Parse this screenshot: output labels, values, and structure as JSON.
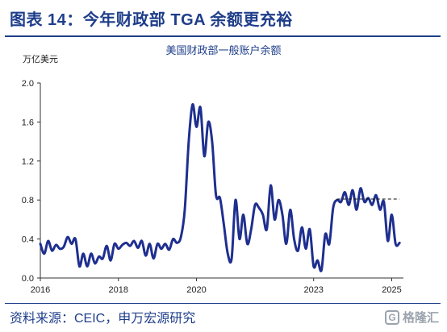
{
  "header": {
    "title": "图表 14：今年财政部 TGA 余额更充裕"
  },
  "footer": {
    "source": "资料来源：CEIC，申万宏源研究"
  },
  "watermark": {
    "text": "格隆汇",
    "glyph": "G"
  },
  "chart_data": {
    "type": "line",
    "title": "美国财政部一般账户余额",
    "ylabel": "万亿美元",
    "ylim": [
      0,
      2.0
    ],
    "yticks": [
      "0.0",
      "0.4",
      "0.8",
      "1.2",
      "1.6",
      "2.0"
    ],
    "xlim": [
      2016.0,
      2025.3
    ],
    "xticks": [
      "2016",
      "2018",
      "2020",
      "2023",
      "2025"
    ],
    "line_color": "#1f2f8f",
    "reference_line": {
      "y": 0.81,
      "x_start": 2023.6,
      "x_end": 2025.2,
      "style": "dashed"
    },
    "series": [
      {
        "x": [
          2016.0,
          2016.1,
          2016.2,
          2016.3,
          2016.4,
          2016.5,
          2016.6,
          2016.7,
          2016.8,
          2016.9,
          2017.0,
          2017.1,
          2017.2,
          2017.3,
          2017.4,
          2017.5,
          2017.6,
          2017.7,
          2017.8,
          2017.9,
          2018.0,
          2018.1,
          2018.2,
          2018.3,
          2018.4,
          2018.5,
          2018.6,
          2018.7,
          2018.8,
          2018.9,
          2019.0,
          2019.1,
          2019.2,
          2019.3,
          2019.4,
          2019.5,
          2019.6,
          2019.7,
          2019.8,
          2019.9,
          2020.0,
          2020.1,
          2020.2,
          2020.3,
          2020.4,
          2020.5,
          2020.6,
          2020.7,
          2020.8,
          2020.9,
          2021.0,
          2021.1,
          2021.2,
          2021.3,
          2021.4,
          2021.5,
          2021.6,
          2021.7,
          2021.8,
          2021.9,
          2022.0,
          2022.1,
          2022.2,
          2022.3,
          2022.4,
          2022.5,
          2022.6,
          2022.7,
          2022.8,
          2022.9,
          2023.0,
          2023.1,
          2023.2,
          2023.3,
          2023.4,
          2023.5,
          2023.6,
          2023.7,
          2023.8,
          2023.9,
          2024.0,
          2024.1,
          2024.2,
          2024.3,
          2024.4,
          2024.5,
          2024.6,
          2024.7,
          2024.8,
          2024.9,
          2025.0,
          2025.1,
          2025.2
        ],
        "y": [
          0.35,
          0.25,
          0.38,
          0.28,
          0.34,
          0.3,
          0.32,
          0.42,
          0.35,
          0.4,
          0.12,
          0.25,
          0.12,
          0.25,
          0.15,
          0.22,
          0.2,
          0.33,
          0.18,
          0.35,
          0.3,
          0.34,
          0.36,
          0.33,
          0.38,
          0.31,
          0.38,
          0.23,
          0.35,
          0.2,
          0.35,
          0.3,
          0.35,
          0.29,
          0.4,
          0.36,
          0.42,
          0.7,
          1.4,
          1.78,
          1.55,
          1.75,
          1.25,
          1.6,
          1.4,
          0.85,
          0.82,
          0.55,
          0.25,
          0.2,
          0.8,
          0.4,
          0.65,
          0.35,
          0.5,
          0.75,
          0.72,
          0.65,
          0.5,
          0.95,
          0.6,
          0.8,
          0.65,
          0.35,
          0.7,
          0.4,
          0.28,
          0.52,
          0.3,
          0.5,
          0.12,
          0.18,
          0.08,
          0.45,
          0.35,
          0.72,
          0.8,
          0.78,
          0.88,
          0.75,
          0.9,
          0.7,
          0.92,
          0.78,
          0.82,
          0.75,
          0.85,
          0.7,
          0.78,
          0.38,
          0.65,
          0.35,
          0.36
        ]
      }
    ]
  }
}
